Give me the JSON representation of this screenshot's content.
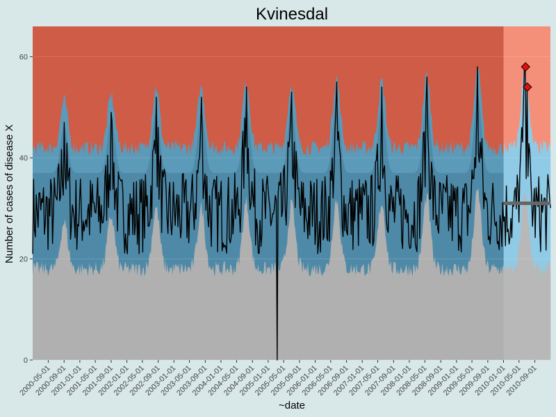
{
  "chart_data": {
    "type": "area",
    "title": "Kvinesdal",
    "xlabel": "~date",
    "ylabel": "Number of cases of disease X",
    "ylim": [
      0,
      66
    ],
    "y_ticks": [
      0,
      20,
      40,
      60
    ],
    "x_range": [
      "2000-01-01",
      "2010-12-31"
    ],
    "prediction_start": "2010-01-01",
    "x_ticks": [
      "2000-05-01",
      "2000-09-01",
      "2001-01-01",
      "2001-05-01",
      "2001-09-01",
      "2002-01-01",
      "2002-05-01",
      "2002-09-01",
      "2003-01-01",
      "2003-05-01",
      "2003-09-01",
      "2004-01-01",
      "2004-05-01",
      "2004-09-01",
      "2005-01-01",
      "2005-05-01",
      "2005-09-01",
      "2006-01-01",
      "2006-05-01",
      "2006-09-01",
      "2007-01-01",
      "2007-05-01",
      "2007-09-01",
      "2008-01-01",
      "2008-05-01",
      "2008-09-01",
      "2009-01-01",
      "2009-05-01",
      "2009-09-01",
      "2010-01-01",
      "2010-05-01",
      "2010-09-01"
    ],
    "seasonal_peaks": [
      {
        "date": "2000-09-01",
        "value": 47
      },
      {
        "date": "2001-09-01",
        "value": 49
      },
      {
        "date": "2002-08-15",
        "value": 52
      },
      {
        "date": "2003-08-01",
        "value": 52
      },
      {
        "date": "2004-07-15",
        "value": 54
      },
      {
        "date": "2005-07-01",
        "value": 53
      },
      {
        "date": "2006-06-15",
        "value": 55
      },
      {
        "date": "2007-06-01",
        "value": 54
      },
      {
        "date": "2008-05-15",
        "value": 56
      },
      {
        "date": "2009-06-15",
        "value": 58
      },
      {
        "date": "2010-06-15",
        "value": 58
      }
    ],
    "dip": {
      "date": "2005-03-15",
      "value": 0
    },
    "threshold": {
      "value": 31,
      "start": "2010-01-01",
      "end": "2010-12-31"
    },
    "alerts": [
      {
        "date": "2010-06-21",
        "value": 58
      },
      {
        "date": "2010-07-05",
        "value": 54
      }
    ],
    "colors": {
      "background": "#d8e8e8",
      "low_band": "#b0b0b0",
      "normal_band": "#5b9ab8",
      "normal_band_inner": "#4e8aa8",
      "high_band": "#cf5c46",
      "pred_low": "#b8b8b8",
      "pred_normal": "#8fcbe6",
      "pred_high": "#f4907a",
      "line": "#000000",
      "threshold": "#666666",
      "alert": "#e01010"
    }
  }
}
